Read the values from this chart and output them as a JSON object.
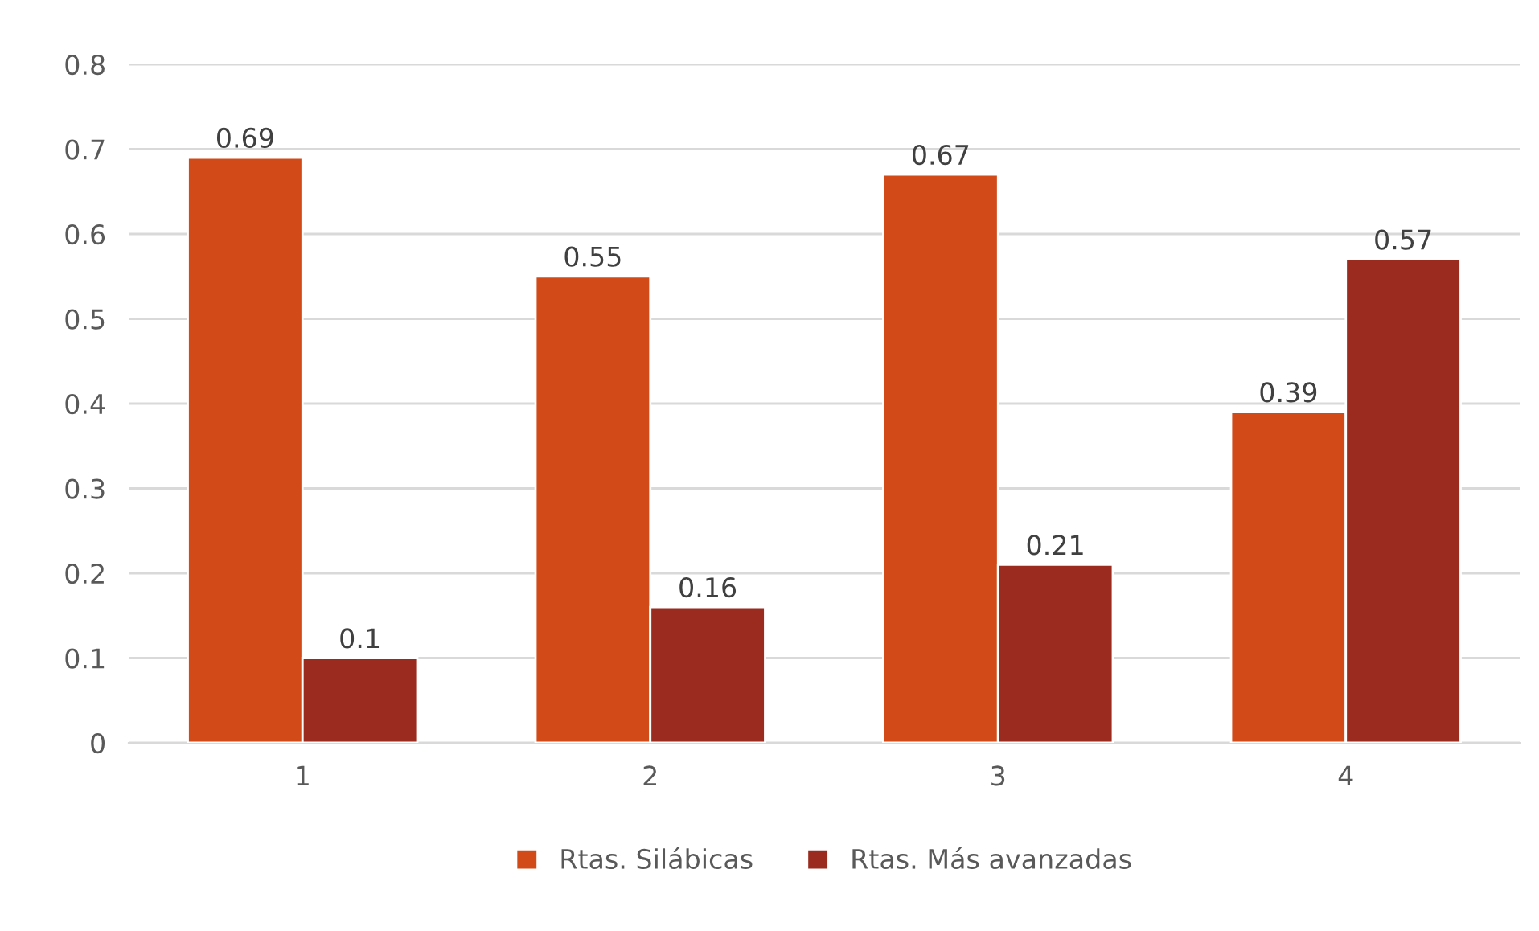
{
  "chart_data": {
    "type": "bar",
    "categories": [
      "1",
      "2",
      "3",
      "4"
    ],
    "series": [
      {
        "name": "Rtas. Silábicas",
        "color": "#d24a17",
        "values": [
          0.69,
          0.55,
          0.67,
          0.39
        ]
      },
      {
        "name": "Rtas. Más avanzadas",
        "color": "#9a2b1e",
        "values": [
          0.1,
          0.16,
          0.21,
          0.57
        ]
      }
    ],
    "ylim": [
      0,
      0.8
    ],
    "yticks": [
      0,
      0.1,
      0.2,
      0.3,
      0.4,
      0.5,
      0.6,
      0.7,
      0.8
    ],
    "grid": "y",
    "legend": "bottom",
    "data_labels": true
  }
}
